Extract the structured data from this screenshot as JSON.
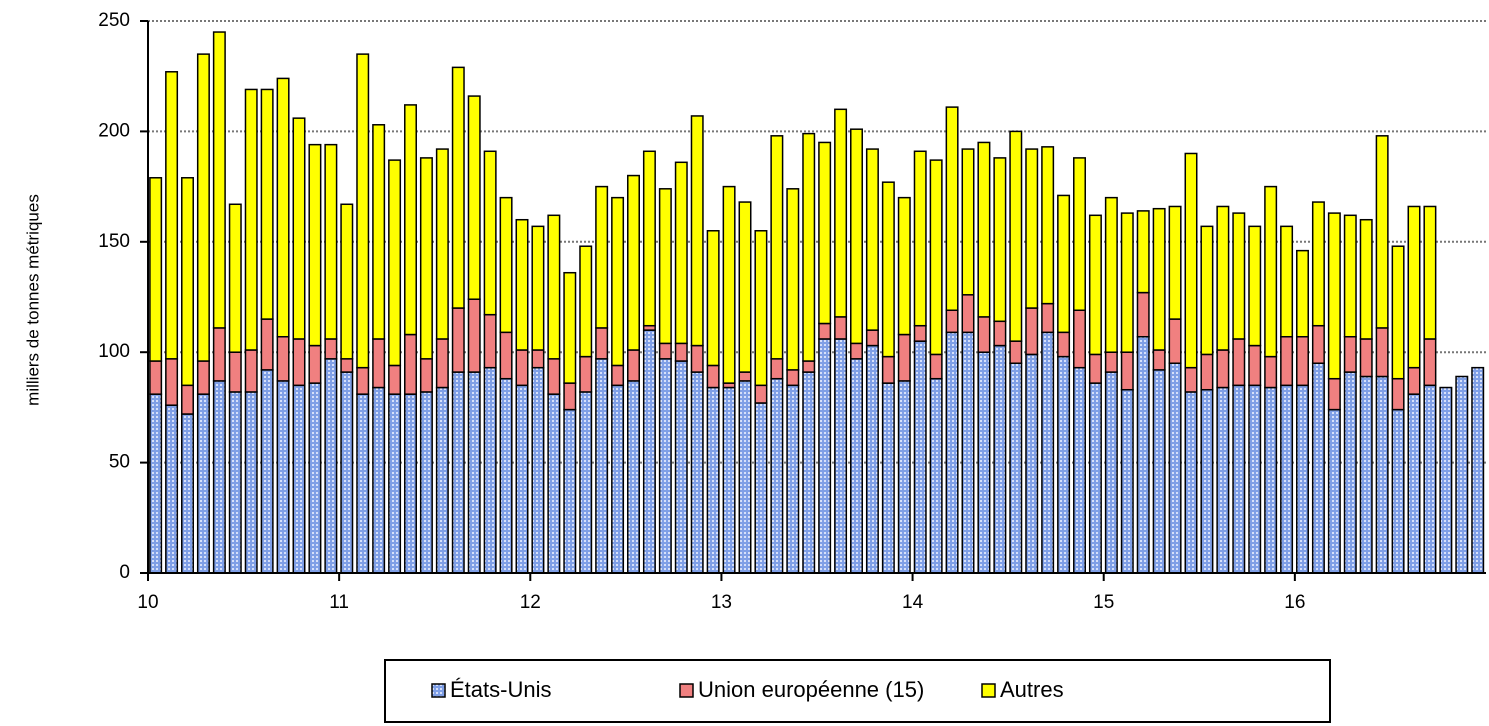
{
  "chart_data": {
    "type": "stacked_bar",
    "y_label": "milliers de tonnes métriques",
    "categories": [
      "10",
      null,
      null,
      null,
      null,
      null,
      null,
      null,
      null,
      null,
      null,
      null,
      "11",
      null,
      null,
      null,
      null,
      null,
      null,
      null,
      null,
      null,
      null,
      null,
      "12",
      null,
      null,
      null,
      null,
      null,
      null,
      null,
      null,
      null,
      null,
      null,
      "13",
      null,
      null,
      null,
      null,
      null,
      null,
      null,
      null,
      null,
      null,
      null,
      "14",
      null,
      null,
      null,
      null,
      null,
      null,
      null,
      null,
      null,
      null,
      null,
      "15",
      null,
      null,
      null,
      null,
      null,
      null,
      null,
      null,
      null,
      null,
      null,
      "16",
      null,
      null,
      null,
      null,
      null,
      null,
      null,
      null,
      null,
      null,
      null
    ],
    "series": [
      {
        "name": "États-Unis",
        "color": "#7f9fe6",
        "values": [
          81,
          76,
          72,
          81,
          87,
          82,
          82,
          92,
          87,
          85,
          86,
          97,
          91,
          81,
          84,
          81,
          81,
          82,
          84,
          91,
          91,
          93,
          88,
          85,
          93,
          81,
          74,
          82,
          97,
          85,
          87,
          110,
          97,
          96,
          91,
          84,
          84,
          87,
          77,
          88,
          85,
          91,
          106,
          106,
          97,
          103,
          86,
          87,
          105,
          88,
          109,
          109,
          100,
          103,
          95,
          99,
          109,
          98,
          93,
          86,
          91,
          83,
          107,
          92,
          95,
          82,
          83,
          84,
          85,
          85,
          84,
          85,
          85,
          95,
          74,
          91,
          89,
          89,
          74,
          81,
          85,
          84,
          89,
          93
        ]
      },
      {
        "name": "Union européenne (15)",
        "color": "#f08080",
        "values": [
          15,
          21,
          13,
          15,
          24,
          18,
          19,
          23,
          20,
          21,
          17,
          9,
          6,
          12,
          22,
          13,
          27,
          15,
          22,
          29,
          33,
          24,
          21,
          16,
          8,
          16,
          12,
          16,
          14,
          9,
          14,
          2,
          7,
          8,
          12,
          10,
          2,
          4,
          8,
          9,
          7,
          5,
          7,
          10,
          7,
          7,
          12,
          21,
          7,
          11,
          10,
          17,
          16,
          11,
          10,
          21,
          13,
          11,
          26,
          13,
          9,
          17,
          20,
          9,
          20,
          11,
          16,
          17,
          21,
          18,
          14,
          22,
          22,
          17,
          14,
          16,
          17,
          22,
          14,
          12,
          21,
          0,
          0,
          0
        ]
      },
      {
        "name": "Autres",
        "color": "#ffff00",
        "values": [
          83,
          130,
          94,
          139,
          134,
          67,
          118,
          104,
          117,
          100,
          91,
          88,
          70,
          142,
          97,
          93,
          104,
          91,
          86,
          109,
          92,
          74,
          61,
          59,
          56,
          65,
          50,
          50,
          64,
          76,
          79,
          79,
          70,
          82,
          104,
          61,
          89,
          77,
          70,
          101,
          82,
          103,
          82,
          94,
          97,
          82,
          79,
          62,
          79,
          88,
          92,
          66,
          79,
          74,
          95,
          72,
          71,
          62,
          69,
          63,
          70,
          63,
          37,
          64,
          51,
          97,
          58,
          65,
          57,
          54,
          77,
          50,
          39,
          56,
          75,
          55,
          54,
          87,
          60,
          73,
          60,
          0,
          0,
          0
        ]
      }
    ],
    "ylim": [
      0,
      250
    ],
    "yticks": [
      0,
      50,
      100,
      150,
      200,
      250
    ],
    "grid": true
  }
}
